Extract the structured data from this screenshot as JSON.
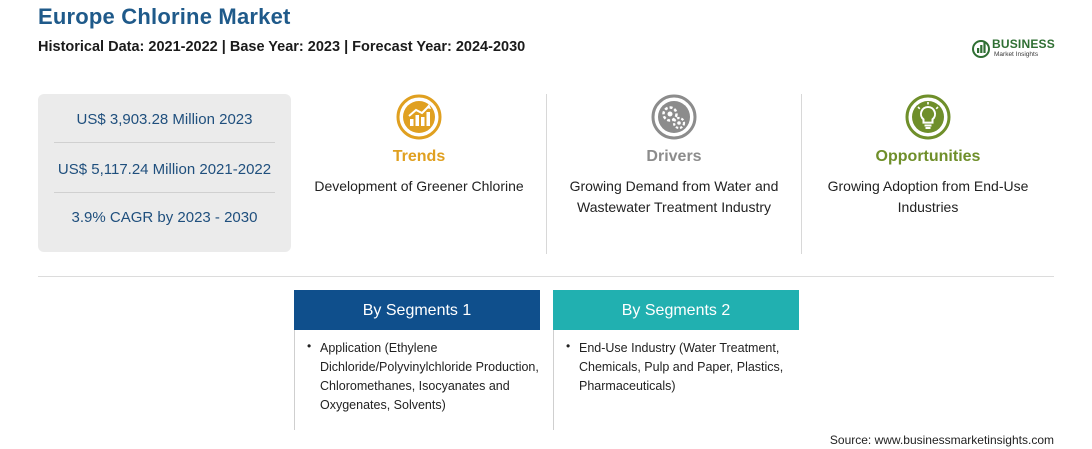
{
  "header": {
    "title": "Europe Chlorine Market",
    "subtitle": "Historical Data: 2021-2022 | Base Year: 2023 | Forecast Year: 2024-2030"
  },
  "logo": {
    "word1": "BUSINESS",
    "word2": "Market Insights",
    "color": "#2f6f33"
  },
  "stats": [
    {
      "text": "US$ 3,903.28 Million 2023"
    },
    {
      "text": "US$ 5,117.24 Million 2021-2022"
    },
    {
      "text": "3.9% CAGR by 2023 - 2030"
    }
  ],
  "cards": [
    {
      "title": "Trends",
      "text": "Development of Greener Chlorine",
      "color": "#e0a020",
      "icon": "trend-chart-icon"
    },
    {
      "title": "Drivers",
      "text": "Growing Demand from Water and Wastewater Treatment Industry",
      "color": "#8c8c8c",
      "icon": "gears-icon"
    },
    {
      "title": "Opportunities",
      "text": "Growing Adoption from End-Use Industries",
      "color": "#6f8f2a",
      "icon": "lightbulb-icon"
    }
  ],
  "segments": [
    {
      "title": "By Segments 1",
      "color": "#0f4f8c",
      "text": "Application (Ethylene Dichloride/Polyvinylchloride Production, Chloromethanes, Isocyanates and Oxygenates, Solvents)"
    },
    {
      "title": "By Segments 2",
      "color": "#21b0b0",
      "text": "End-Use Industry (Water Treatment, Chemicals, Pulp and Paper, Plastics, Pharmaceuticals)"
    }
  ],
  "source": "Source: www.businessmarketinsights.com"
}
